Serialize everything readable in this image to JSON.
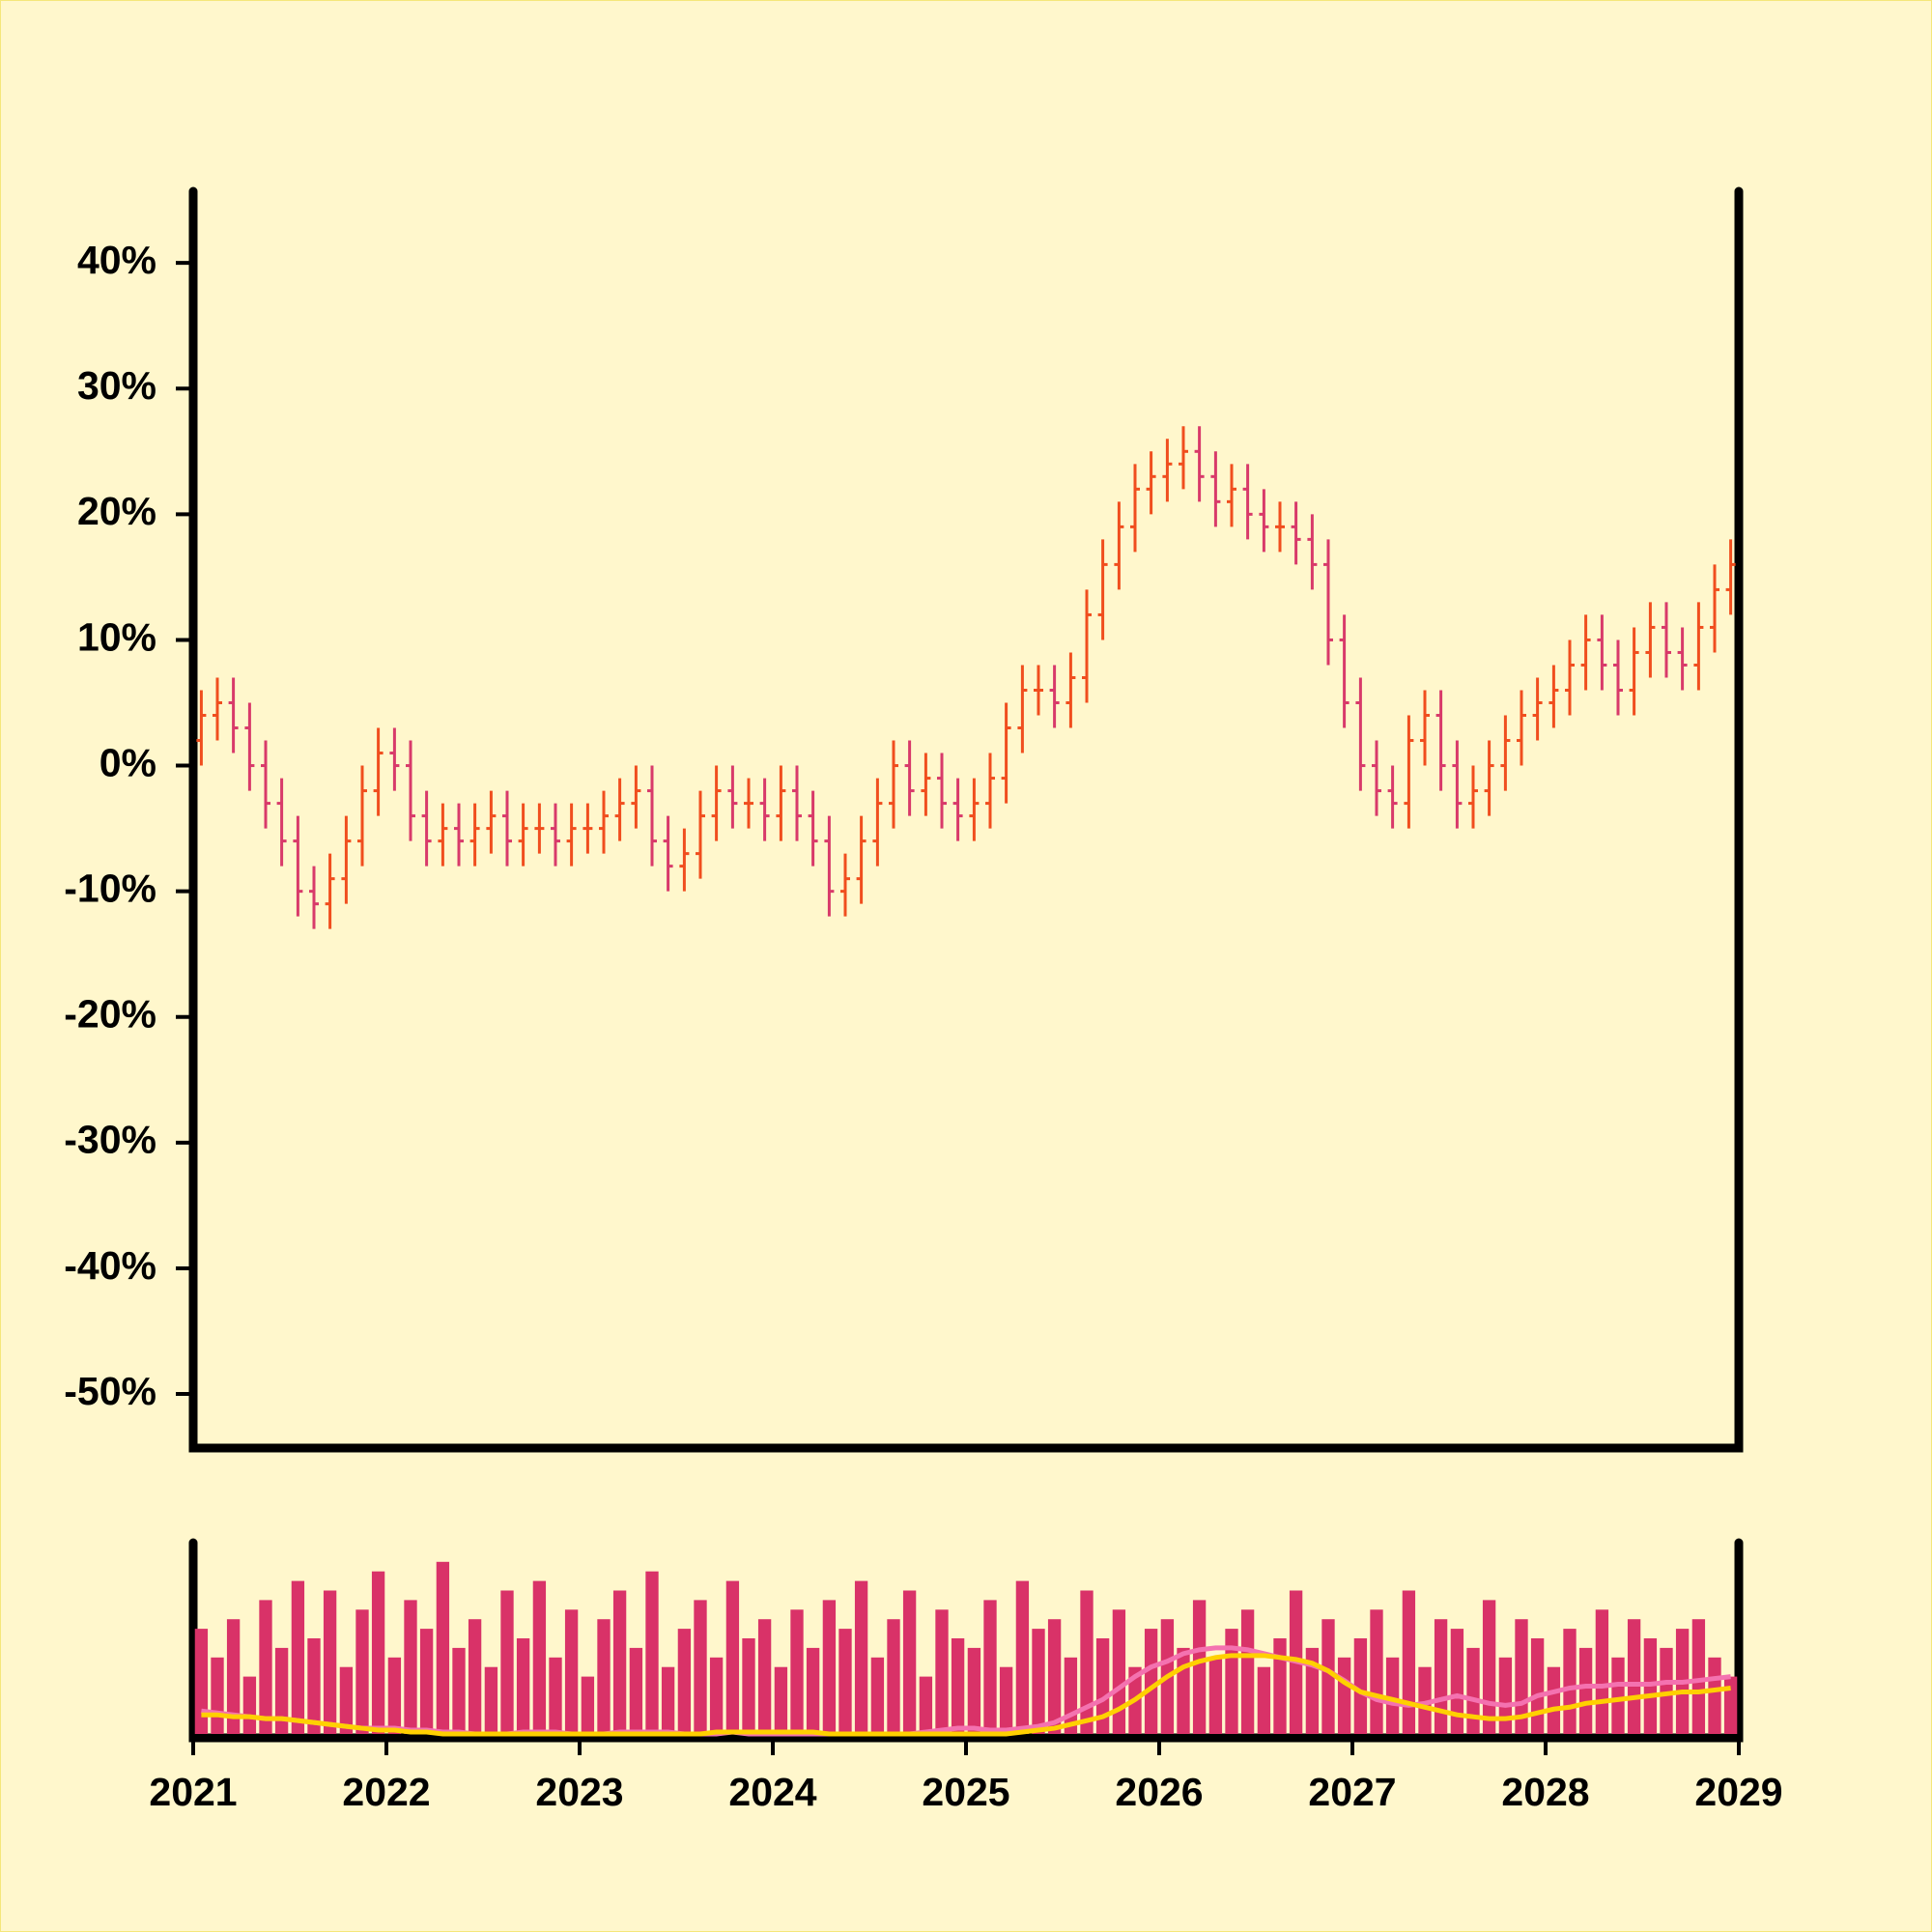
{
  "chart_data": [
    {
      "type": "ohlc",
      "x": [
        2021.042,
        2021.125,
        2021.208,
        2021.292,
        2021.375,
        2021.458,
        2021.542,
        2021.625,
        2021.708,
        2021.792,
        2021.875,
        2021.958,
        2022.042,
        2022.125,
        2022.208,
        2022.292,
        2022.375,
        2022.458,
        2022.542,
        2022.625,
        2022.708,
        2022.792,
        2022.875,
        2022.958,
        2023.042,
        2023.125,
        2023.208,
        2023.292,
        2023.375,
        2023.458,
        2023.542,
        2023.625,
        2023.708,
        2023.792,
        2023.875,
        2023.958,
        2024.042,
        2024.125,
        2024.208,
        2024.292,
        2024.375,
        2024.458,
        2024.542,
        2024.625,
        2024.708,
        2024.792,
        2024.875,
        2024.958,
        2025.042,
        2025.125,
        2025.208,
        2025.292,
        2025.375,
        2025.458,
        2025.542,
        2025.625,
        2025.708,
        2025.792,
        2025.875,
        2025.958,
        2026.042,
        2026.125,
        2026.208,
        2026.292,
        2026.375,
        2026.458,
        2026.542,
        2026.625,
        2026.708,
        2026.792,
        2026.875,
        2026.958,
        2027.042,
        2027.125,
        2027.208,
        2027.292,
        2027.375,
        2027.458,
        2027.542,
        2027.625,
        2027.708,
        2027.792,
        2027.875,
        2027.958,
        2028.042,
        2028.125,
        2028.208,
        2028.292,
        2028.375,
        2028.458,
        2028.542,
        2028.625,
        2028.708,
        2028.792,
        2028.875,
        2028.958
      ],
      "open": [
        2,
        4,
        5,
        3,
        0,
        -3,
        -6,
        -10,
        -11,
        -9,
        -6,
        -2,
        1,
        0,
        -4,
        -6,
        -5,
        -6,
        -5,
        -4,
        -6,
        -5,
        -5,
        -6,
        -5,
        -5,
        -4,
        -3,
        -2,
        -6,
        -8,
        -7,
        -4,
        -2,
        -3,
        -3,
        -4,
        -2,
        -4,
        -6,
        -10,
        -9,
        -6,
        -3,
        0,
        -2,
        -1,
        -3,
        -4,
        -3,
        -1,
        3,
        6,
        6,
        5,
        7,
        12,
        16,
        19,
        22,
        23,
        24,
        25,
        23,
        21,
        22,
        20,
        19,
        19,
        18,
        16,
        10,
        5,
        0,
        -2,
        -3,
        2,
        4,
        0,
        -3,
        -2,
        0,
        2,
        4,
        5,
        6,
        8,
        10,
        8,
        6,
        9,
        11,
        9,
        8,
        11,
        14
      ],
      "high": [
        6,
        7,
        7,
        5,
        2,
        -1,
        -4,
        -8,
        -7,
        -4,
        0,
        3,
        3,
        2,
        -2,
        -3,
        -3,
        -3,
        -2,
        -2,
        -3,
        -3,
        -3,
        -3,
        -3,
        -2,
        -1,
        0,
        0,
        -4,
        -5,
        -2,
        0,
        0,
        -1,
        -1,
        0,
        0,
        -2,
        -4,
        -7,
        -4,
        -1,
        2,
        2,
        1,
        1,
        -1,
        -1,
        1,
        5,
        8,
        8,
        8,
        9,
        14,
        18,
        21,
        24,
        25,
        26,
        27,
        27,
        25,
        24,
        24,
        22,
        21,
        21,
        20,
        18,
        12,
        7,
        2,
        0,
        4,
        6,
        6,
        2,
        0,
        2,
        4,
        6,
        7,
        8,
        10,
        12,
        12,
        10,
        11,
        13,
        13,
        11,
        13,
        16,
        18
      ],
      "low": [
        0,
        2,
        1,
        -2,
        -5,
        -8,
        -12,
        -13,
        -13,
        -11,
        -8,
        -4,
        -2,
        -6,
        -8,
        -8,
        -8,
        -8,
        -7,
        -8,
        -8,
        -7,
        -8,
        -8,
        -7,
        -7,
        -6,
        -5,
        -8,
        -10,
        -10,
        -9,
        -6,
        -5,
        -5,
        -6,
        -6,
        -6,
        -8,
        -12,
        -12,
        -11,
        -8,
        -5,
        -4,
        -4,
        -5,
        -6,
        -6,
        -5,
        -3,
        1,
        4,
        3,
        3,
        5,
        10,
        14,
        17,
        20,
        21,
        22,
        21,
        19,
        19,
        18,
        17,
        17,
        16,
        14,
        8,
        3,
        -2,
        -4,
        -5,
        -5,
        0,
        -2,
        -5,
        -5,
        -4,
        -2,
        0,
        2,
        3,
        4,
        6,
        6,
        4,
        4,
        7,
        7,
        6,
        6,
        9,
        12
      ],
      "close": [
        4,
        5,
        3,
        0,
        -3,
        -6,
        -10,
        -11,
        -9,
        -6,
        -2,
        1,
        0,
        -4,
        -6,
        -5,
        -6,
        -5,
        -4,
        -6,
        -5,
        -5,
        -6,
        -5,
        -5,
        -4,
        -3,
        -2,
        -6,
        -8,
        -7,
        -4,
        -2,
        -3,
        -3,
        -4,
        -2,
        -4,
        -6,
        -10,
        -9,
        -6,
        -3,
        0,
        -2,
        -1,
        -3,
        -4,
        -3,
        -1,
        3,
        6,
        6,
        5,
        7,
        12,
        16,
        19,
        22,
        23,
        24,
        25,
        23,
        21,
        22,
        20,
        19,
        19,
        18,
        16,
        10,
        5,
        0,
        -2,
        -3,
        2,
        4,
        0,
        -3,
        -2,
        0,
        2,
        4,
        5,
        6,
        8,
        10,
        8,
        6,
        9,
        11,
        9,
        8,
        11,
        14,
        16
      ],
      "up_color": "#f04e1e",
      "down_color": "#d83a6a",
      "xlim": [
        2021,
        2029
      ],
      "ylim": [
        -54.3,
        45.7
      ],
      "yticks": [
        {
          "value": 40,
          "label": "40%"
        },
        {
          "value": 30,
          "label": "30%"
        },
        {
          "value": 20,
          "label": "20%"
        },
        {
          "value": 10,
          "label": "10%"
        },
        {
          "value": 0,
          "label": "0%"
        },
        {
          "value": -10,
          "label": "-10%"
        },
        {
          "value": -20,
          "label": "-20%"
        },
        {
          "value": -30,
          "label": "-30%"
        },
        {
          "value": -40,
          "label": "-40%"
        },
        {
          "value": -50,
          "label": "-50%"
        }
      ]
    },
    {
      "type": "volume",
      "x": [
        2021.042,
        2021.125,
        2021.208,
        2021.292,
        2021.375,
        2021.458,
        2021.542,
        2021.625,
        2021.708,
        2021.792,
        2021.875,
        2021.958,
        2022.042,
        2022.125,
        2022.208,
        2022.292,
        2022.375,
        2022.458,
        2022.542,
        2022.625,
        2022.708,
        2022.792,
        2022.875,
        2022.958,
        2023.042,
        2023.125,
        2023.208,
        2023.292,
        2023.375,
        2023.458,
        2023.542,
        2023.625,
        2023.708,
        2023.792,
        2023.875,
        2023.958,
        2024.042,
        2024.125,
        2024.208,
        2024.292,
        2024.375,
        2024.458,
        2024.542,
        2024.625,
        2024.708,
        2024.792,
        2024.875,
        2024.958,
        2025.042,
        2025.125,
        2025.208,
        2025.292,
        2025.375,
        2025.458,
        2025.542,
        2025.625,
        2025.708,
        2025.792,
        2025.875,
        2025.958,
        2026.042,
        2026.125,
        2026.208,
        2026.292,
        2026.375,
        2026.458,
        2026.542,
        2026.625,
        2026.708,
        2026.792,
        2026.875,
        2026.958,
        2027.042,
        2027.125,
        2027.208,
        2027.292,
        2027.375,
        2027.458,
        2027.542,
        2027.625,
        2027.708,
        2027.792,
        2027.875,
        2027.958,
        2028.042,
        2028.125,
        2028.208,
        2028.292,
        2028.375,
        2028.458,
        2028.542,
        2028.625,
        2028.708,
        2028.792,
        2028.875,
        2028.958
      ],
      "values": [
        55,
        40,
        60,
        30,
        70,
        45,
        80,
        50,
        75,
        35,
        65,
        85,
        40,
        70,
        55,
        90,
        45,
        60,
        35,
        75,
        50,
        80,
        40,
        65,
        30,
        60,
        75,
        45,
        85,
        35,
        55,
        70,
        40,
        80,
        50,
        60,
        35,
        65,
        45,
        70,
        55,
        80,
        40,
        60,
        75,
        30,
        65,
        50,
        45,
        70,
        35,
        80,
        55,
        60,
        40,
        75,
        50,
        65,
        35,
        55,
        60,
        45,
        70,
        40,
        55,
        65,
        35,
        50,
        75,
        45,
        60,
        40,
        50,
        65,
        40,
        75,
        35,
        60,
        55,
        45,
        70,
        40,
        60,
        50,
        35,
        55,
        45,
        65,
        40,
        60,
        50,
        45,
        55,
        60,
        40,
        30
      ],
      "color": "#d93268",
      "lines": [
        {
          "color": "#f472b0",
          "values": [
            12,
            11,
            10,
            9,
            8,
            8,
            7,
            6,
            5,
            4,
            3,
            3,
            3,
            2,
            2,
            1,
            1,
            0,
            0,
            0,
            1,
            1,
            1,
            0,
            0,
            0,
            1,
            1,
            1,
            1,
            0,
            0,
            0,
            1,
            0,
            0,
            0,
            0,
            0,
            0,
            0,
            0,
            0,
            0,
            0,
            1,
            2,
            3,
            3,
            2,
            2,
            3,
            4,
            6,
            10,
            14,
            18,
            24,
            30,
            35,
            38,
            42,
            44,
            45,
            45,
            44,
            42,
            40,
            38,
            36,
            33,
            28,
            22,
            18,
            16,
            15,
            16,
            18,
            20,
            18,
            16,
            15,
            16,
            20,
            22,
            24,
            25,
            25,
            26,
            26,
            26,
            27,
            27,
            28,
            29,
            30
          ]
        },
        {
          "color": "#ffd000",
          "values": [
            10,
            10,
            9,
            9,
            8,
            8,
            7,
            6,
            5,
            4,
            3,
            2,
            2,
            1,
            1,
            0,
            0,
            0,
            0,
            0,
            0,
            0,
            0,
            0,
            0,
            0,
            0,
            0,
            0,
            0,
            0,
            0,
            1,
            1,
            1,
            1,
            1,
            1,
            1,
            0,
            0,
            0,
            0,
            0,
            0,
            0,
            0,
            0,
            0,
            0,
            0,
            1,
            2,
            3,
            5,
            7,
            9,
            13,
            18,
            24,
            30,
            35,
            38,
            40,
            41,
            41,
            41,
            40,
            39,
            37,
            33,
            27,
            22,
            20,
            18,
            16,
            14,
            12,
            10,
            9,
            8,
            8,
            9,
            11,
            13,
            14,
            16,
            17,
            18,
            19,
            20,
            21,
            22,
            22,
            23,
            24
          ]
        }
      ],
      "xlim": [
        2021,
        2029
      ],
      "ylim": [
        0,
        100
      ],
      "xticks": [
        2021,
        2022,
        2023,
        2024,
        2025,
        2026,
        2027,
        2028,
        2029
      ]
    }
  ]
}
